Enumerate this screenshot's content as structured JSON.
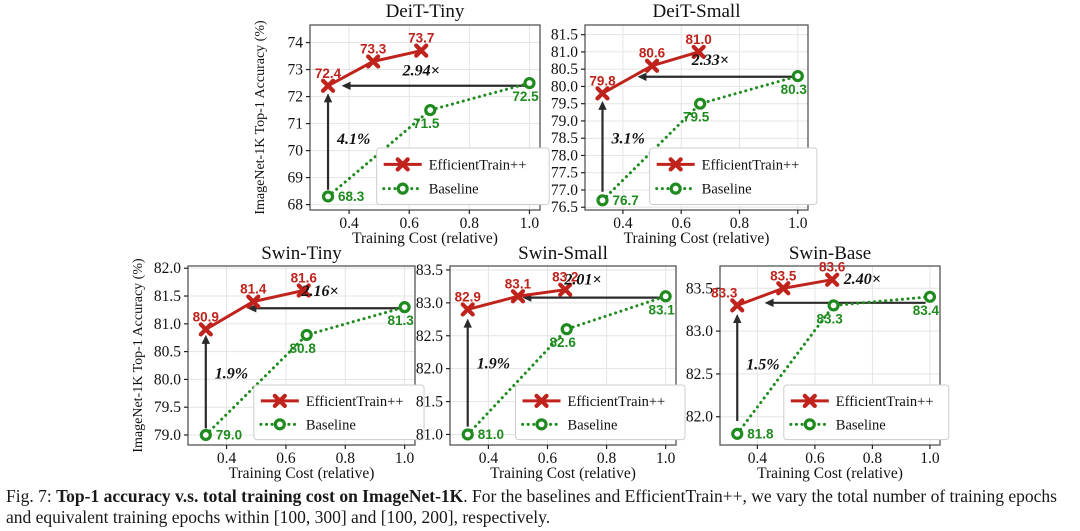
{
  "caption": {
    "fig_label": "Fig. 7:",
    "bold_text": "Top-1 accuracy v.s. total training cost on ImageNet-1K",
    "text_after_bold": ". For the baselines and EfficientTrain++, we vary the total number of training epochs",
    "line2": "and equivalent training epochs within [100, 300] and [100, 200], respectively."
  },
  "colors": {
    "efficienttrain": "#bf231c",
    "baseline": "#1f8b1f",
    "annotation": "#2b2b2b",
    "grid": "#e4e4e4",
    "axis_border": "#555555",
    "tick_text": "#111111",
    "legend_border": "#cccccc",
    "legend_bg": "#ffffff"
  },
  "legend": {
    "entries": [
      "EfficientTrain++",
      "Baseline"
    ]
  },
  "chart_data": [
    {
      "type": "line",
      "title": "DeiT-Tiny",
      "xlabel": "Training Cost (relative)",
      "ylabel": "ImageNet-1K Top-1 Accuracy (%)",
      "x_ticks": [
        "0.4",
        "0.6",
        "0.8",
        "1.0"
      ],
      "x_tick_values": [
        0.4,
        0.6,
        0.8,
        1.0
      ],
      "x_range": [
        0.27,
        1.035
      ],
      "y_ticks": [
        "68",
        "69",
        "70",
        "71",
        "72",
        "73",
        "74"
      ],
      "y_tick_values": [
        68,
        69,
        70,
        71,
        72,
        73,
        74
      ],
      "y_range": [
        67.8,
        74.65
      ],
      "series": [
        {
          "name": "EfficientTrain++",
          "marker": "x",
          "style": "solid",
          "x": [
            0.33,
            0.48,
            0.64
          ],
          "y": [
            72.4,
            73.3,
            73.7
          ],
          "labels": [
            "72.4",
            "73.3",
            "73.7"
          ],
          "label_pos": [
            "a",
            "a",
            "a"
          ]
        },
        {
          "name": "Baseline",
          "marker": "o",
          "style": "dotted",
          "x": [
            0.33,
            0.67,
            1.0
          ],
          "y": [
            68.3,
            71.5,
            72.5
          ],
          "labels": [
            "68.3",
            "71.5",
            "72.5"
          ],
          "label_pos": [
            "r",
            "b",
            "b"
          ]
        }
      ],
      "speedup_annotation": {
        "label": "2.94×",
        "arrow_y": 72.4,
        "x_from": 0.985,
        "x_to": 0.375,
        "label_x": 0.64,
        "label_y": 72.78
      },
      "gain_annotation": {
        "label": "4.1%",
        "arrow_x": 0.33,
        "y_from": 68.55,
        "y_to": 72.12,
        "label_y": 70.25
      }
    },
    {
      "type": "line",
      "title": "DeiT-Small",
      "xlabel": "Training Cost (relative)",
      "ylabel": "",
      "x_ticks": [
        "0.4",
        "0.6",
        "0.8",
        "1.0"
      ],
      "x_tick_values": [
        0.4,
        0.6,
        0.8,
        1.0
      ],
      "x_range": [
        0.27,
        1.035
      ],
      "y_ticks": [
        "76.5",
        "77.0",
        "77.5",
        "78.0",
        "78.5",
        "79.0",
        "79.5",
        "80.0",
        "80.5",
        "81.0",
        "81.5"
      ],
      "y_tick_values": [
        76.5,
        77.0,
        77.5,
        78.0,
        78.5,
        79.0,
        79.5,
        80.0,
        80.5,
        81.0,
        81.5
      ],
      "y_range": [
        76.42,
        81.78
      ],
      "series": [
        {
          "name": "EfficientTrain++",
          "marker": "x",
          "style": "solid",
          "x": [
            0.33,
            0.5,
            0.66
          ],
          "y": [
            79.8,
            80.6,
            81.0
          ],
          "labels": [
            "79.8",
            "80.6",
            "81.0"
          ],
          "label_pos": [
            "a",
            "a",
            "a"
          ]
        },
        {
          "name": "Baseline",
          "marker": "o",
          "style": "dotted",
          "x": [
            0.33,
            0.665,
            1.0
          ],
          "y": [
            76.7,
            79.5,
            80.3
          ],
          "labels": [
            "76.7",
            "79.5",
            "80.3"
          ],
          "label_pos": [
            "r",
            "b",
            "b"
          ]
        }
      ],
      "speedup_annotation": {
        "label": "2.33×",
        "arrow_y": 80.28,
        "x_from": 0.985,
        "x_to": 0.45,
        "label_x": 0.7,
        "label_y": 80.62
      },
      "gain_annotation": {
        "label": "3.1%",
        "arrow_x": 0.33,
        "y_from": 76.95,
        "y_to": 79.58,
        "label_y": 78.35
      }
    },
    {
      "type": "line",
      "title": "Swin-Tiny",
      "xlabel": "Training Cost (relative)",
      "ylabel": "ImageNet-1K Top-1 Accuracy (%)",
      "x_ticks": [
        "0.4",
        "0.6",
        "0.8",
        "1.0"
      ],
      "x_tick_values": [
        0.4,
        0.6,
        0.8,
        1.0
      ],
      "x_range": [
        0.27,
        1.035
      ],
      "y_ticks": [
        "79.0",
        "79.5",
        "80.0",
        "80.5",
        "81.0",
        "81.5",
        "82.0"
      ],
      "y_tick_values": [
        79.0,
        79.5,
        80.0,
        80.5,
        81.0,
        81.5,
        82.0
      ],
      "y_range": [
        78.82,
        82.04
      ],
      "series": [
        {
          "name": "EfficientTrain++",
          "marker": "x",
          "style": "solid",
          "x": [
            0.33,
            0.49,
            0.66
          ],
          "y": [
            80.9,
            81.4,
            81.6
          ],
          "labels": [
            "80.9",
            "81.4",
            "81.6"
          ],
          "label_pos": [
            "a",
            "a",
            "a"
          ]
        },
        {
          "name": "Baseline",
          "marker": "o",
          "style": "dotted",
          "x": [
            0.33,
            0.67,
            1.0
          ],
          "y": [
            79.0,
            80.8,
            81.3
          ],
          "labels": [
            "79.0",
            "80.8",
            "81.3"
          ],
          "label_pos": [
            "r",
            "b",
            "b"
          ]
        }
      ],
      "speedup_annotation": {
        "label": "2.16×",
        "arrow_y": 81.28,
        "x_from": 0.985,
        "x_to": 0.47,
        "label_x": 0.715,
        "label_y": 81.5
      },
      "gain_annotation": {
        "label": "1.9%",
        "arrow_x": 0.33,
        "y_from": 79.12,
        "y_to": 80.8,
        "label_y": 80.02
      }
    },
    {
      "type": "line",
      "title": "Swin-Small",
      "xlabel": "Training Cost (relative)",
      "ylabel": "",
      "x_ticks": [
        "0.4",
        "0.6",
        "0.8",
        "1.0"
      ],
      "x_tick_values": [
        0.4,
        0.6,
        0.8,
        1.0
      ],
      "x_range": [
        0.27,
        1.035
      ],
      "y_ticks": [
        "81.0",
        "81.5",
        "82.0",
        "82.5",
        "83.0",
        "83.5"
      ],
      "y_tick_values": [
        81.0,
        81.5,
        82.0,
        82.5,
        83.0,
        83.5
      ],
      "y_range": [
        80.84,
        83.56
      ],
      "series": [
        {
          "name": "EfficientTrain++",
          "marker": "x",
          "style": "solid",
          "x": [
            0.33,
            0.5,
            0.66
          ],
          "y": [
            82.9,
            83.1,
            83.2
          ],
          "labels": [
            "82.9",
            "83.1",
            "83.2"
          ],
          "label_pos": [
            "a",
            "a",
            "a"
          ]
        },
        {
          "name": "Baseline",
          "marker": "o",
          "style": "dotted",
          "x": [
            0.33,
            0.665,
            1.0
          ],
          "y": [
            81.0,
            82.6,
            83.1
          ],
          "labels": [
            "81.0",
            "82.6",
            "83.1"
          ],
          "label_pos": [
            "r",
            "b",
            "b"
          ]
        }
      ],
      "speedup_annotation": {
        "label": "2.01×",
        "arrow_y": 83.08,
        "x_from": 0.985,
        "x_to": 0.515,
        "label_x": 0.72,
        "label_y": 83.28
      },
      "gain_annotation": {
        "label": "1.9%",
        "arrow_x": 0.33,
        "y_from": 81.12,
        "y_to": 82.76,
        "label_y": 82.0
      }
    },
    {
      "type": "line",
      "title": "Swin-Base",
      "xlabel": "Training Cost (relative)",
      "ylabel": "",
      "x_ticks": [
        "0.4",
        "0.6",
        "0.8",
        "1.0"
      ],
      "x_tick_values": [
        0.4,
        0.6,
        0.8,
        1.0
      ],
      "x_range": [
        0.27,
        1.035
      ],
      "y_ticks": [
        "82.0",
        "82.5",
        "83.0",
        "83.5"
      ],
      "y_tick_values": [
        82.0,
        82.5,
        83.0,
        83.5
      ],
      "y_range": [
        81.67,
        83.76
      ],
      "series": [
        {
          "name": "EfficientTrain++",
          "marker": "x",
          "style": "solid",
          "x": [
            0.33,
            0.49,
            0.66
          ],
          "y": [
            83.3,
            83.5,
            83.6
          ],
          "labels": [
            "83.3",
            "83.5",
            "83.6"
          ],
          "label_pos": [
            "al",
            "a",
            "a"
          ]
        },
        {
          "name": "Baseline",
          "marker": "o",
          "style": "dotted",
          "x": [
            0.33,
            0.665,
            1.0
          ],
          "y": [
            81.8,
            83.3,
            83.4
          ],
          "labels": [
            "81.8",
            "83.3",
            "83.4"
          ],
          "label_pos": [
            "r",
            "b",
            "b"
          ]
        }
      ],
      "speedup_annotation": {
        "label": "2.40×",
        "arrow_y": 83.33,
        "x_from": 0.985,
        "x_to": 0.425,
        "label_x": 0.765,
        "label_y": 83.55
      },
      "gain_annotation": {
        "label": "1.5%",
        "arrow_x": 0.33,
        "y_from": 81.95,
        "y_to": 83.2,
        "label_y": 82.55
      }
    }
  ]
}
